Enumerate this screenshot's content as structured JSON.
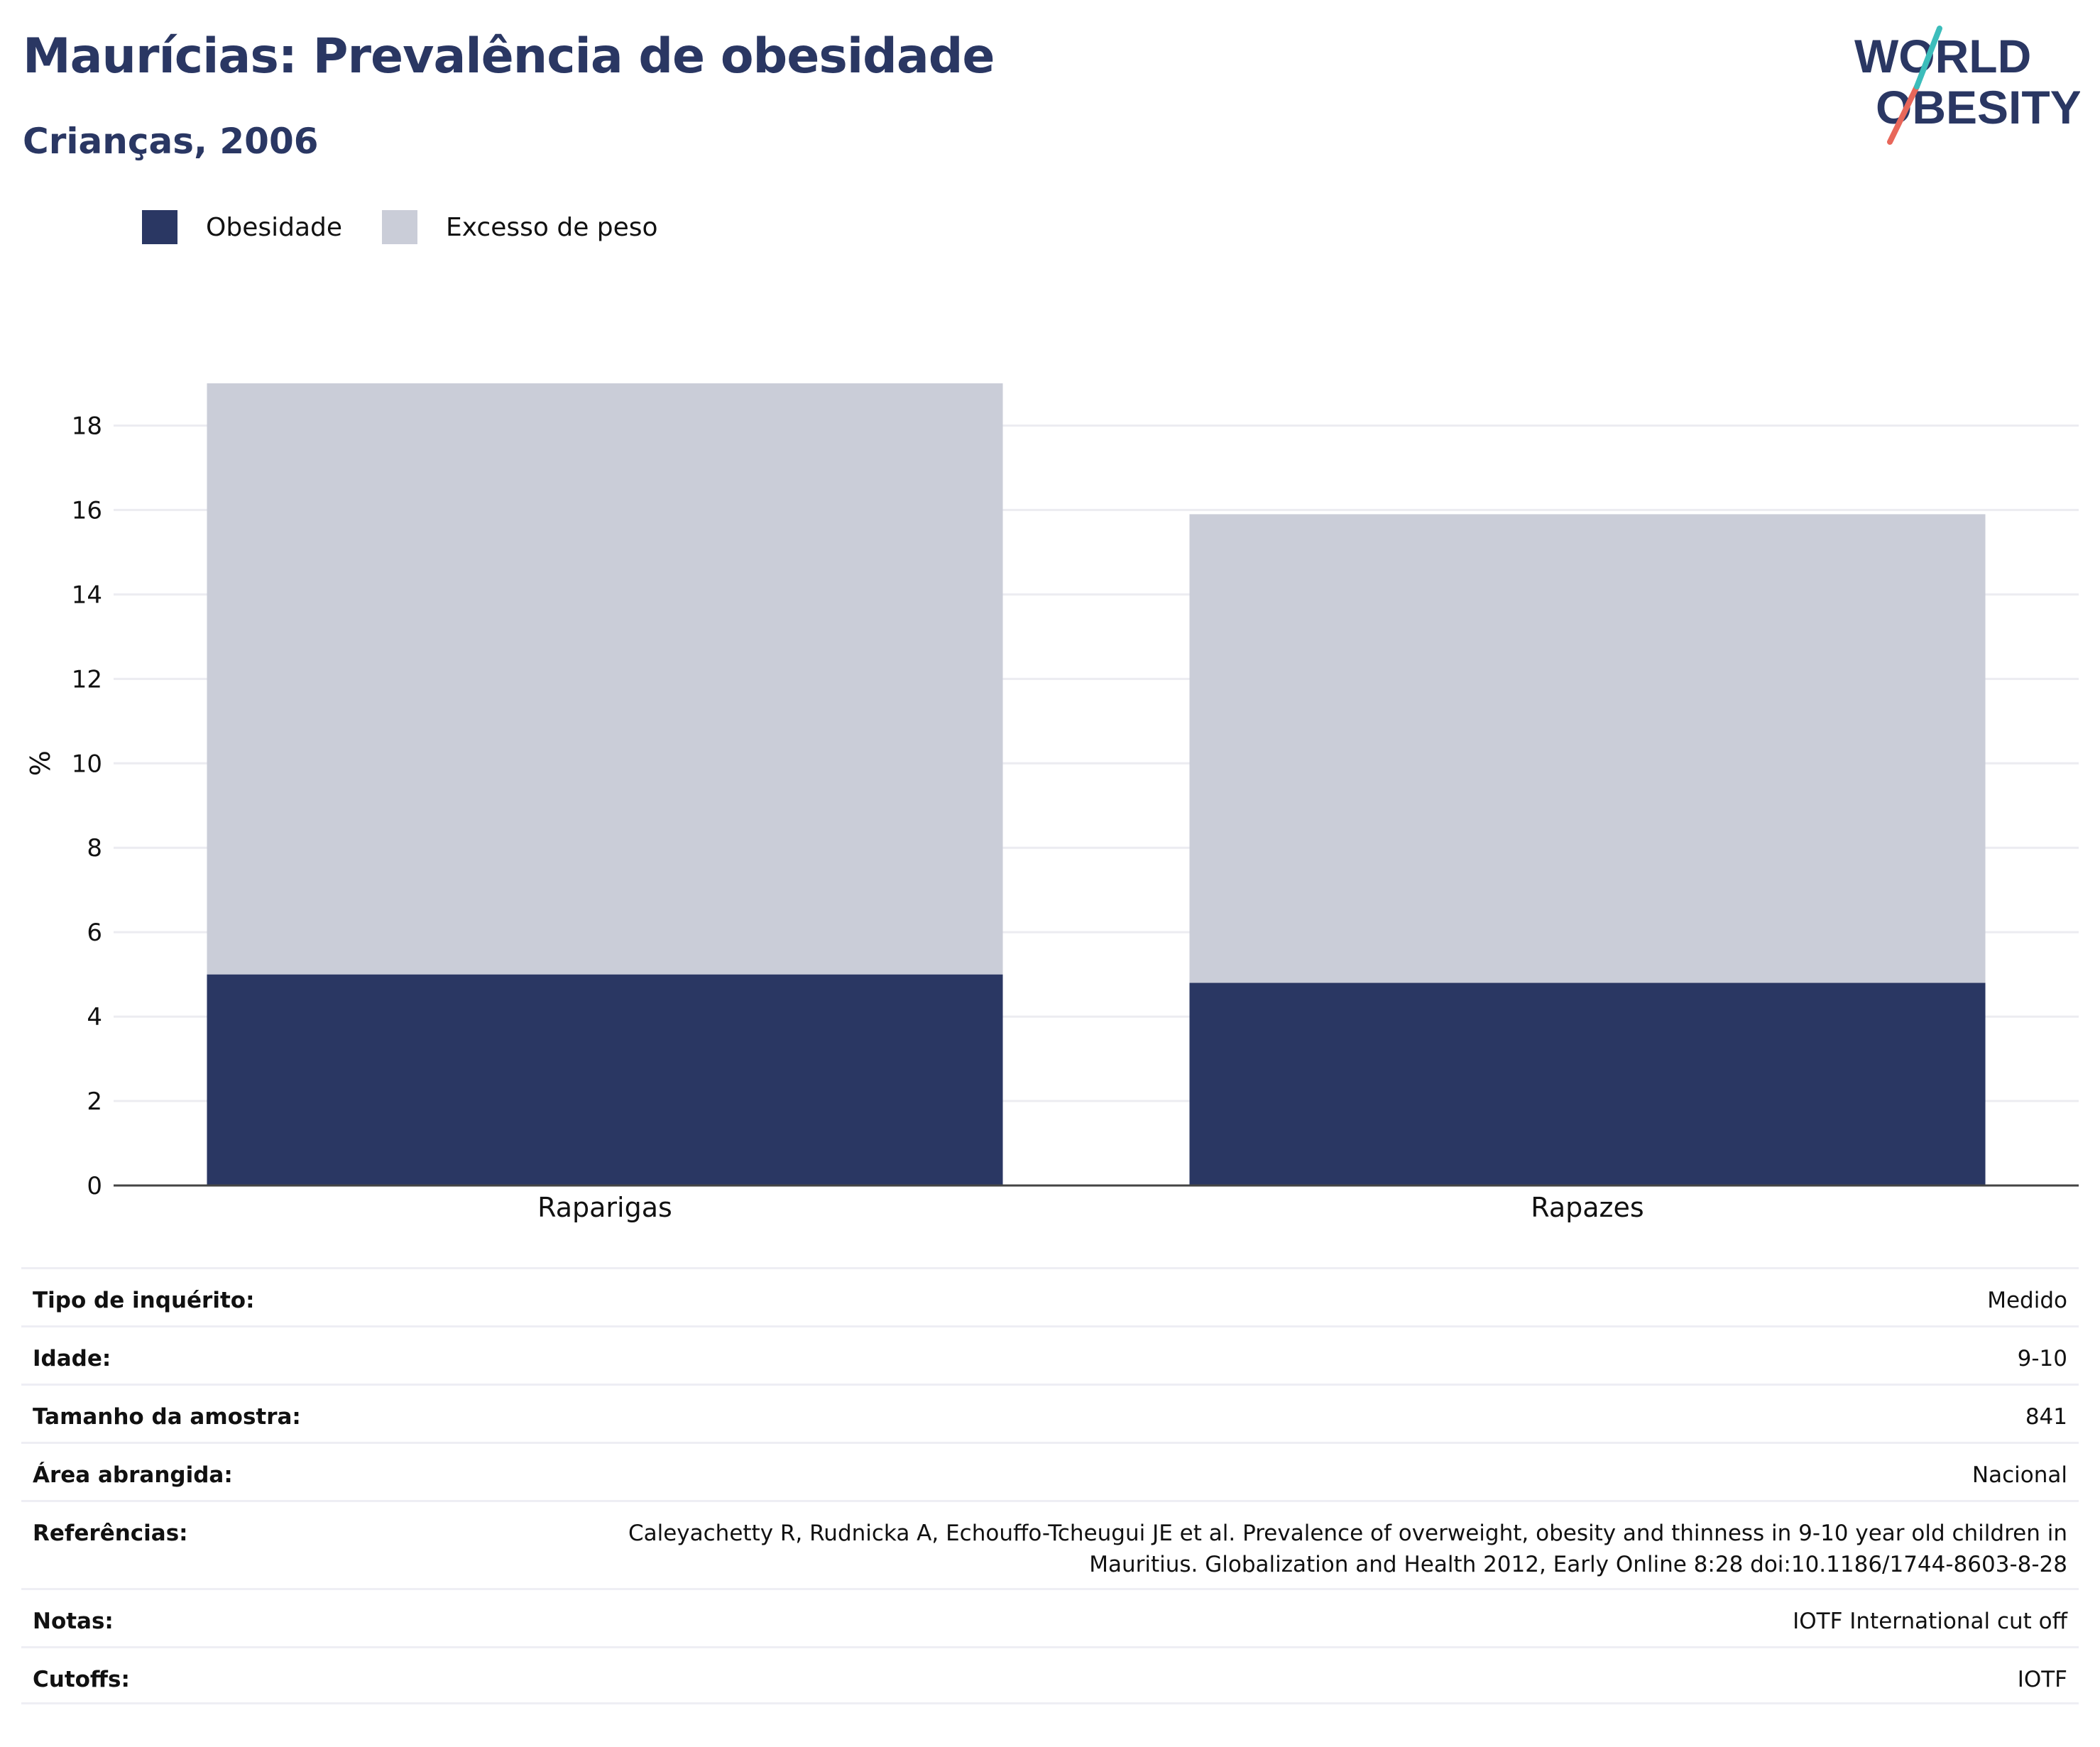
{
  "header": {
    "title": "Maurícias: Prevalência de obesidade",
    "subtitle": "Crianças, 2006"
  },
  "logo": {
    "line1": "WORLD",
    "line2": "OBESITY"
  },
  "colors": {
    "obesity": "#2a3763",
    "overweight": "#cacdd8",
    "accent_teal": "#3cbdbb",
    "accent_coral": "#e8675a"
  },
  "chart_data": {
    "type": "bar",
    "stacked": true,
    "categories": [
      "Raparigas",
      "Rapazes"
    ],
    "series": [
      {
        "name": "Obesidade",
        "color": "#2a3763",
        "values": [
          5.0,
          4.8
        ]
      },
      {
        "name": "Excesso de peso",
        "color": "#cacdd8",
        "values": [
          14.0,
          11.1
        ]
      }
    ],
    "ylabel": "%",
    "ylim": [
      0,
      19
    ],
    "yticks": [
      0,
      2,
      4,
      6,
      8,
      10,
      12,
      14,
      16,
      18
    ],
    "grid": true,
    "legend_position": "top-left"
  },
  "meta": [
    {
      "label": "Tipo de inquérito:",
      "value": "Medido"
    },
    {
      "label": "Idade:",
      "value": "9-10"
    },
    {
      "label": "Tamanho da amostra:",
      "value": "841"
    },
    {
      "label": "Área abrangida:",
      "value": "Nacional"
    },
    {
      "label": "Referências:",
      "value": "Caleyachetty R, Rudnicka A, Echouffo-Tcheugui JE et al. Prevalence of overweight, obesity and thinness in 9-10 year old children in Mauritius. Globalization and Health 2012, Early Online 8:28 doi:10.1186/1744-8603-8-28"
    },
    {
      "label": "Notas:",
      "value": "IOTF International cut off"
    },
    {
      "label": "Cutoffs:",
      "value": "IOTF"
    }
  ]
}
